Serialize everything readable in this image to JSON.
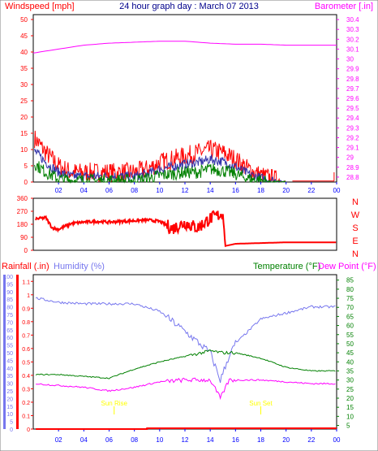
{
  "header": {
    "left_label": "Windspeed [mph]",
    "title": "24 hour graph day : March 07 2013",
    "right_label": "Barometer [.in]"
  },
  "labels": {
    "rainfall": "Rainfall (.in)",
    "humidity": "Humidity (%)",
    "temperature": "Temperature (°F)",
    "dewpoint": "Dew Point (°F)",
    "sunrise": "Sun Rise",
    "sunset": "Sun Set",
    "directions": [
      "N",
      "W",
      "S",
      "E",
      "N"
    ]
  },
  "colors": {
    "wind_gust": "#ff0000",
    "wind_avg": "#008000",
    "wind_mid": "#3333aa",
    "barometer": "#ff00ff",
    "direction": "#ff0000",
    "humidity": "#7777ee",
    "temperature": "#008000",
    "dewpoint": "#ff00ff",
    "rain": "#ff0000",
    "sun": "#ffff00",
    "axis_left": "#ff0000",
    "axis_right": "#ff00ff",
    "axis_x": "#0000ff",
    "title": "#00008b"
  },
  "chart_data": [
    {
      "type": "line",
      "name": "wind-barometer",
      "x_ticks": [
        "02",
        "04",
        "06",
        "08",
        "10",
        "12",
        "14",
        "16",
        "18",
        "20",
        "22",
        "00"
      ],
      "left_axis": {
        "ticks": [
          0,
          5,
          10,
          15,
          20,
          25,
          30,
          35,
          40,
          45,
          50
        ],
        "ylim": [
          0,
          50
        ]
      },
      "right_axis": {
        "ticks": [
          "28.8",
          "28.9",
          "29",
          "29.1",
          "29.2",
          "29.3",
          "29.4",
          "29.5",
          "29.6",
          "29.7",
          "29.8",
          "29.9",
          "30",
          "30.1",
          "30.2",
          "30.3",
          "30.4"
        ],
        "ylim": [
          28.75,
          30.45
        ]
      },
      "barometer": {
        "x": [
          0,
          2,
          4,
          6,
          8,
          10,
          12,
          14,
          16,
          18,
          20,
          22,
          24
        ],
        "values": [
          30.06,
          30.1,
          30.14,
          30.16,
          30.17,
          30.18,
          30.18,
          30.16,
          30.15,
          30.15,
          30.14,
          30.14,
          30.14
        ]
      },
      "wind_gust": {
        "x": [
          0,
          1,
          2,
          3,
          4,
          5,
          6,
          7,
          8,
          9,
          10,
          11,
          12,
          13,
          14,
          15,
          16,
          17,
          18,
          19,
          20,
          21,
          22,
          23,
          24
        ],
        "values": [
          14,
          9,
          5,
          3,
          3,
          3,
          3,
          3,
          3,
          4,
          6,
          7,
          8,
          9,
          10,
          9,
          7,
          4,
          2,
          1,
          0,
          0,
          0,
          0,
          0
        ]
      },
      "wind_avg": {
        "x": [
          0,
          1,
          2,
          3,
          4,
          5,
          6,
          7,
          8,
          9,
          10,
          11,
          12,
          13,
          14,
          15,
          16,
          17,
          18,
          19,
          20,
          21,
          22,
          23,
          24
        ],
        "values": [
          6,
          3,
          1,
          0.5,
          0.5,
          0.5,
          0.5,
          0.5,
          0.5,
          1,
          2,
          2.5,
          3,
          3,
          4,
          3.5,
          2.5,
          1,
          0.5,
          0,
          0,
          0,
          0,
          0,
          0
        ]
      }
    },
    {
      "type": "line",
      "name": "wind-direction",
      "left_axis": {
        "ticks": [
          0,
          90,
          180,
          270,
          360
        ],
        "ylim": [
          0,
          360
        ]
      },
      "x": [
        0,
        1,
        1.5,
        2,
        3,
        4,
        5,
        6,
        7,
        8,
        9,
        10,
        11,
        12,
        13,
        14,
        15,
        15.2,
        16,
        18,
        20,
        22,
        24
      ],
      "values": [
        215,
        225,
        155,
        145,
        185,
        195,
        200,
        195,
        200,
        205,
        210,
        200,
        150,
        190,
        155,
        220,
        255,
        30,
        45,
        50,
        55,
        55,
        55
      ]
    },
    {
      "type": "line",
      "name": "humidity-temperature",
      "left_axis_rain": {
        "ticks": [
          "0",
          "0.1",
          "0.2",
          "0.3",
          "0.4",
          "0.5",
          "0.6",
          "0.7",
          "0.8",
          "0.9",
          "1",
          "1.1"
        ],
        "ylim": [
          0,
          1.15
        ]
      },
      "left_axis_humidity": {
        "ticks": [
          0,
          5,
          10,
          15,
          20,
          25,
          30,
          35,
          40,
          45,
          50,
          55,
          60,
          65,
          70,
          75,
          80,
          85,
          90,
          95,
          100
        ]
      },
      "right_axis": {
        "ticks": [
          5,
          10,
          15,
          20,
          25,
          30,
          35,
          40,
          45,
          50,
          55,
          60,
          65,
          70,
          75,
          80,
          85
        ],
        "ylim": [
          3,
          88
        ]
      },
      "humidity": {
        "x": [
          0,
          2,
          4,
          6,
          8,
          10,
          12,
          14,
          14.8,
          15.5,
          16,
          18,
          20,
          22,
          24
        ],
        "values": [
          86,
          83,
          82,
          82,
          82,
          77,
          64,
          50,
          32,
          48,
          56,
          72,
          76,
          80,
          80
        ]
      },
      "temperature": {
        "x": [
          0,
          2,
          4,
          6,
          8,
          10,
          12,
          14,
          15,
          16,
          18,
          20,
          22,
          24
        ],
        "values": [
          33,
          33,
          32,
          31,
          36,
          40,
          43,
          46,
          45,
          45,
          42,
          37,
          35,
          35
        ]
      },
      "dewpoint": {
        "x": [
          0,
          2,
          4,
          6,
          8,
          10,
          12,
          14,
          14.8,
          15.5,
          16,
          18,
          20,
          22,
          24
        ],
        "values": [
          28,
          27,
          26,
          24,
          26,
          29,
          30,
          30,
          20,
          30,
          30,
          30,
          29,
          28,
          28
        ]
      },
      "rain": {
        "x": [
          0,
          9,
          24
        ],
        "values": [
          0,
          0,
          0.01
        ]
      },
      "sunrise_hour": 6.4,
      "sunset_hour": 18
    }
  ]
}
